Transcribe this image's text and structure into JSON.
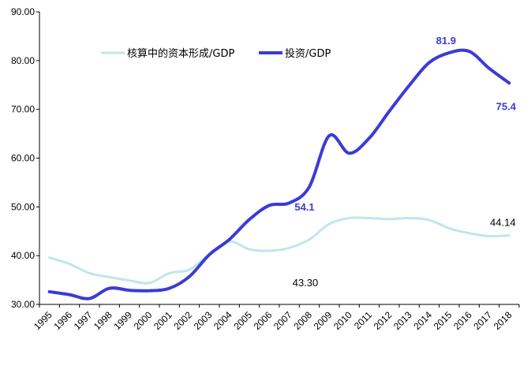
{
  "chart_data": {
    "type": "line",
    "title": "",
    "xlabel": "",
    "ylabel": "",
    "ylim": [
      30,
      90
    ],
    "y_ticks": [
      "30.00",
      "40.00",
      "50.00",
      "60.00",
      "70.00",
      "80.00",
      "90.00"
    ],
    "x": [
      "1995",
      "1996",
      "1997",
      "1998",
      "1999",
      "2000",
      "2001",
      "2002",
      "2003",
      "2004",
      "2005",
      "2006",
      "2007",
      "2008",
      "2009",
      "2010",
      "2011",
      "2012",
      "2013",
      "2014",
      "2015",
      "2016",
      "2017",
      "2018"
    ],
    "grid": false,
    "legend_position": "top-left",
    "series": [
      {
        "name": "核算中的资本形成/GDP",
        "color": "#bfe6ea",
        "values": [
          39.6,
          38.3,
          36.4,
          35.6,
          34.9,
          34.4,
          36.4,
          37.1,
          40.3,
          42.9,
          41.3,
          41.0,
          41.6,
          43.3,
          46.5,
          47.7,
          47.7,
          47.5,
          47.7,
          47.3,
          45.6,
          44.6,
          44.0,
          44.14
        ]
      },
      {
        "name": "投资/GDP",
        "color": "#3b3bd6",
        "values": [
          32.6,
          32.0,
          31.2,
          33.3,
          32.9,
          32.8,
          33.3,
          35.7,
          40.2,
          43.3,
          47.4,
          50.3,
          50.8,
          54.1,
          64.6,
          61.0,
          64.1,
          69.6,
          74.9,
          79.6,
          81.6,
          81.9,
          78.4,
          75.4
        ]
      }
    ],
    "annotations": [
      {
        "text": "81.9",
        "series": 1,
        "x": "2015",
        "y": 81.9
      },
      {
        "text": "54.1",
        "series": 1,
        "x": "2008",
        "y": 54.1
      },
      {
        "text": "75.4",
        "series": 1,
        "x": "2018",
        "y": 75.4
      },
      {
        "text": "43.30",
        "series": 0,
        "x": "2008",
        "y": 43.3
      },
      {
        "text": "44.14",
        "series": 0,
        "x": "2018",
        "y": 44.14
      }
    ]
  }
}
